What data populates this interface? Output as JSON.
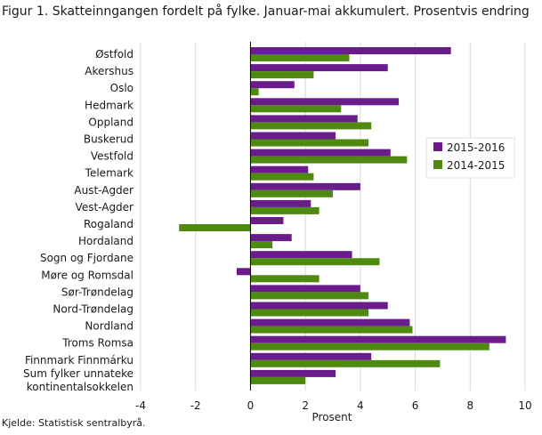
{
  "title": "Figur 1. Skatteinngangen fordelt på fylke. Januar-mai akkumulert. Prosentvis endring",
  "source": "Kjelde: Statistisk sentralbyrå.",
  "chart_data": {
    "type": "bar",
    "orientation": "horizontal",
    "xlabel": "Prosent",
    "ylabel": "",
    "xlim": [
      -4,
      10
    ],
    "xticks": [
      -4,
      -2,
      0,
      2,
      4,
      6,
      8,
      10
    ],
    "grid": "vertical",
    "legend_position": "right",
    "categories": [
      "Østfold",
      "Akershus",
      "Oslo",
      "Hedmark",
      "Oppland",
      "Buskerud",
      "Vestfold",
      "Telemark",
      "Aust-Agder",
      "Vest-Agder",
      "Rogaland",
      "Hordaland",
      "Sogn og Fjordane",
      "Møre og Romsdal",
      "Sør-Trøndelag",
      "Nord-Trøndelag",
      "Nordland",
      "Troms Romsa",
      "Finnmark Finnmárku",
      "Sum fylker unnateke kontinentalsokkelen"
    ],
    "series": [
      {
        "name": "2015-2016",
        "color": "#6b1c8b",
        "values": [
          7.3,
          5.0,
          1.6,
          5.4,
          3.9,
          3.1,
          5.1,
          2.1,
          4.0,
          2.2,
          1.2,
          1.5,
          3.7,
          -0.5,
          4.0,
          5.0,
          5.8,
          9.3,
          4.4,
          3.1
        ]
      },
      {
        "name": "2014-2015",
        "color": "#4f8a10",
        "values": [
          3.6,
          2.3,
          0.3,
          3.3,
          4.4,
          4.3,
          5.7,
          2.3,
          3.0,
          2.5,
          -2.6,
          0.8,
          4.7,
          2.5,
          4.3,
          4.3,
          5.9,
          8.7,
          6.9,
          2.0
        ]
      }
    ]
  }
}
